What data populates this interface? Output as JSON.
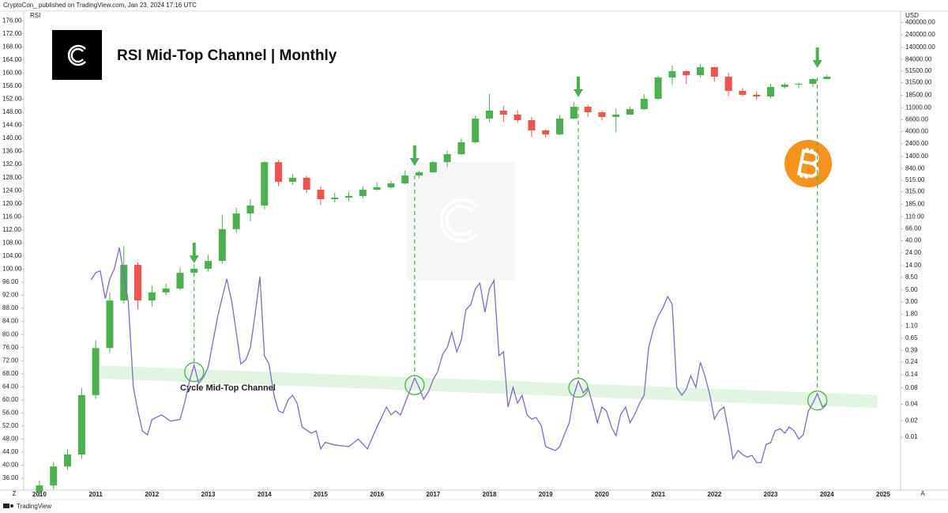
{
  "chart_data": {
    "type": "candlestick",
    "header": "CryptoCon_ published on TradingView.com, Jan 23, 2024 17:16 UTC",
    "title": "RSI Mid-Top Channel | Monthly",
    "annotation": "Cycle Mid-Top Channel",
    "y_label": "RSI",
    "y2_label": "USD",
    "footer": "TradingView",
    "left_button": "Z",
    "right_button": "A",
    "xlim": [
      2009.72,
      2025.31
    ],
    "xticks": [
      2010,
      2011,
      2012,
      2013,
      2014,
      2015,
      2016,
      2017,
      2018,
      2019,
      2020,
      2021,
      2022,
      2023,
      2024,
      2025
    ],
    "ylim": [
      32.4,
      178.7
    ],
    "yticks": [
      {
        "value": 36,
        "label": "36.00"
      },
      {
        "value": 40,
        "label": "40.00"
      },
      {
        "value": 44,
        "label": "44.00"
      },
      {
        "value": 48,
        "label": "48.00"
      },
      {
        "value": 52,
        "label": "52.00"
      },
      {
        "value": 56,
        "label": "56.00"
      },
      {
        "value": 60,
        "label": "60.00"
      },
      {
        "value": 64,
        "label": "64.00"
      },
      {
        "value": 68,
        "label": "68.00"
      },
      {
        "value": 72,
        "label": "72.00"
      },
      {
        "value": 76,
        "label": "76.00"
      },
      {
        "value": 80,
        "label": "80.00"
      },
      {
        "value": 84,
        "label": "84.00"
      },
      {
        "value": 88,
        "label": "88.00"
      },
      {
        "value": 92,
        "label": "92.00"
      },
      {
        "value": 96,
        "label": "96.00"
      },
      {
        "value": 100,
        "label": "100.00"
      },
      {
        "value": 104,
        "label": "104.00"
      },
      {
        "value": 108,
        "label": "108.00"
      },
      {
        "value": 112,
        "label": "112.00"
      },
      {
        "value": 116,
        "label": "116.00"
      },
      {
        "value": 120,
        "label": "120.00"
      },
      {
        "value": 124,
        "label": "124.00"
      },
      {
        "value": 128,
        "label": "128.00"
      },
      {
        "value": 132,
        "label": "132.00"
      },
      {
        "value": 136,
        "label": "136.00"
      },
      {
        "value": 140,
        "label": "140.00"
      },
      {
        "value": 144,
        "label": "144.00"
      },
      {
        "value": 148,
        "label": "148.00"
      },
      {
        "value": 152,
        "label": "152.00"
      },
      {
        "value": 156,
        "label": "156.00"
      },
      {
        "value": 160,
        "label": "160.00"
      },
      {
        "value": 164,
        "label": "164.00"
      },
      {
        "value": 168,
        "label": "168.00"
      },
      {
        "value": 172,
        "label": "172.00"
      },
      {
        "value": 176,
        "label": "176.00"
      }
    ],
    "y2_log": true,
    "y2lim": [
      0.00107,
      627000
    ],
    "y2ticks": [
      {
        "value": 400000,
        "label": "400000.00"
      },
      {
        "value": 240000,
        "label": "240000.00"
      },
      {
        "value": 140000,
        "label": "140000.00"
      },
      {
        "value": 84000,
        "label": "84000.00"
      },
      {
        "value": 51500,
        "label": "51500.00"
      },
      {
        "value": 31500,
        "label": "31500.00"
      },
      {
        "value": 18500,
        "label": "18500.00"
      },
      {
        "value": 11000,
        "label": "11000.00"
      },
      {
        "value": 6600,
        "label": "6600.00"
      },
      {
        "value": 4000,
        "label": "4000.00"
      },
      {
        "value": 2400,
        "label": "2400.00"
      },
      {
        "value": 1400,
        "label": "1400.00"
      },
      {
        "value": 840,
        "label": "840.00"
      },
      {
        "value": 515,
        "label": "515.00"
      },
      {
        "value": 315,
        "label": "315.00"
      },
      {
        "value": 185,
        "label": "185.00"
      },
      {
        "value": 110,
        "label": "110.00"
      },
      {
        "value": 66,
        "label": "66.00"
      },
      {
        "value": 40,
        "label": "40.00"
      },
      {
        "value": 24,
        "label": "24.00"
      },
      {
        "value": 14,
        "label": "14.00"
      },
      {
        "value": 8.5,
        "label": "8.50"
      },
      {
        "value": 5,
        "label": "5.00"
      },
      {
        "value": 3,
        "label": "3.00"
      },
      {
        "value": 1.8,
        "label": "1.80"
      },
      {
        "value": 1.1,
        "label": "1.10"
      },
      {
        "value": 0.65,
        "label": "0.65"
      },
      {
        "value": 0.39,
        "label": "0.39"
      },
      {
        "value": 0.24,
        "label": "0.24"
      },
      {
        "value": 0.14,
        "label": "0.14"
      },
      {
        "value": 0.08,
        "label": "0.08"
      },
      {
        "value": 0.04,
        "label": "0.04"
      },
      {
        "value": 0.02,
        "label": "0.02"
      },
      {
        "value": 0.01,
        "label": "0.01"
      }
    ],
    "series": [
      {
        "name": "RSI",
        "color": "#7e6bc4",
        "x": [
          2010.92,
          2011.0,
          2011.08,
          2011.17,
          2011.25,
          2011.33,
          2011.42,
          2011.58,
          2011.67,
          2011.75,
          2011.83,
          2011.92,
          2012.0,
          2012.17,
          2012.33,
          2012.5,
          2012.58,
          2012.67,
          2012.75,
          2012.83,
          2012.92,
          2013.0,
          2013.17,
          2013.33,
          2013.42,
          2013.58,
          2013.67,
          2013.75,
          2013.83,
          2013.92,
          2014.0,
          2014.08,
          2014.17,
          2014.25,
          2014.33,
          2014.42,
          2014.5,
          2014.58,
          2014.67,
          2014.83,
          2014.92,
          2015.0,
          2015.08,
          2015.25,
          2015.5,
          2015.67,
          2015.83,
          2016.0,
          2016.17,
          2016.25,
          2016.33,
          2016.42,
          2016.5,
          2016.58,
          2016.67,
          2016.75,
          2016.83,
          2016.92,
          2017.0,
          2017.08,
          2017.17,
          2017.25,
          2017.33,
          2017.42,
          2017.5,
          2017.58,
          2017.67,
          2017.75,
          2017.83,
          2017.92,
          2018.0,
          2018.08,
          2018.17,
          2018.25,
          2018.33,
          2018.42,
          2018.5,
          2018.58,
          2018.67,
          2018.75,
          2018.83,
          2018.92,
          2019.0,
          2019.17,
          2019.25,
          2019.33,
          2019.42,
          2019.5,
          2019.58,
          2019.67,
          2019.75,
          2019.83,
          2019.92,
          2020.0,
          2020.08,
          2020.17,
          2020.25,
          2020.33,
          2020.42,
          2020.5,
          2020.58,
          2020.67,
          2020.75,
          2020.83,
          2020.92,
          2021.0,
          2021.08,
          2021.17,
          2021.25,
          2021.33,
          2021.42,
          2021.5,
          2021.58,
          2021.67,
          2021.75,
          2021.83,
          2021.92,
          2022.0,
          2022.08,
          2022.17,
          2022.25,
          2022.33,
          2022.42,
          2022.5,
          2022.58,
          2022.67,
          2022.75,
          2022.83,
          2022.92,
          2023.0,
          2023.08,
          2023.17,
          2023.25,
          2023.33,
          2023.42,
          2023.5,
          2023.58,
          2023.67,
          2023.75,
          2023.83,
          2023.92,
          2024.0
        ],
        "values": [
          96.7,
          98.9,
          99.5,
          91,
          97,
          100,
          106.6,
          90,
          63.8,
          56.6,
          50.5,
          49.3,
          54,
          55.4,
          53.5,
          54,
          59,
          66,
          70.6,
          65,
          67,
          70,
          85.6,
          97,
          90,
          71,
          72.3,
          76,
          85.6,
          97.7,
          73.5,
          71,
          61.4,
          56.6,
          56,
          60,
          61.4,
          59,
          51.7,
          49.8,
          50.5,
          45,
          47,
          46.2,
          45.7,
          48,
          45,
          51.7,
          57.8,
          55.4,
          56.6,
          55.4,
          59,
          62.6,
          66.7,
          63.8,
          60.2,
          62.6,
          66.2,
          68.6,
          74,
          76,
          80.7,
          74.7,
          78.3,
          87.5,
          89.2,
          94,
          95.7,
          86.8,
          94,
          96.5,
          73.5,
          74.7,
          57.8,
          63.8,
          59,
          61.4,
          55.4,
          54.1,
          54.6,
          52.2,
          45.7,
          44.5,
          45.7,
          49.3,
          53,
          61.4,
          65.8,
          62.1,
          63.8,
          59,
          53,
          57.8,
          56.6,
          51.7,
          49,
          55.4,
          57.8,
          53,
          55.4,
          59,
          61.4,
          76,
          82,
          85.6,
          88,
          91.6,
          89.2,
          63.8,
          61.4,
          63.3,
          67.4,
          63.8,
          71.5,
          67.4,
          61.4,
          54.1,
          56.6,
          57.8,
          50.5,
          42,
          44.5,
          43.3,
          42.5,
          43,
          40.8,
          40.8,
          46.4,
          46.9,
          50.5,
          51.2,
          49.8,
          51.7,
          50.5,
          48,
          49.3,
          56.6,
          59,
          61.9,
          57.8,
          59
        ]
      }
    ],
    "candles": {
      "axis": "y2",
      "up_color": "#4caf50",
      "down_color": "#ef5350",
      "x": [
        2010.0,
        2010.25,
        2010.5,
        2010.75,
        2011.0,
        2011.25,
        2011.5,
        2011.75,
        2012.0,
        2012.25,
        2012.5,
        2012.75,
        2013.0,
        2013.25,
        2013.5,
        2013.75,
        2014.0,
        2014.25,
        2014.5,
        2014.75,
        2015.0,
        2015.25,
        2015.5,
        2015.75,
        2016.0,
        2016.25,
        2016.5,
        2016.75,
        2017.0,
        2017.25,
        2017.5,
        2017.75,
        2018.0,
        2018.25,
        2018.5,
        2018.75,
        2019.0,
        2019.25,
        2019.5,
        2019.75,
        2020.0,
        2020.25,
        2020.5,
        2020.75,
        2021.0,
        2021.25,
        2021.5,
        2021.75,
        2022.0,
        2022.25,
        2022.5,
        2022.75,
        2023.0,
        2023.25,
        2023.5,
        2023.75,
        2024.0
      ],
      "open": [
        0.001,
        0.0013,
        0.0029,
        0.0048,
        0.059,
        0.43,
        3.2,
        14.4,
        3.2,
        4.5,
        5.3,
        10.3,
        12.2,
        17,
        65,
        126,
        176,
        1100,
        480,
        570,
        344,
        230,
        246,
        263,
        344,
        380,
        449,
        627,
        716,
        1100,
        1540,
        2550,
        6930,
        9680,
        8190,
        6490,
        4200,
        3550,
        6930,
        11430,
        9050,
        7420,
        8190,
        10330,
        15950,
        39300,
        51300,
        43400,
        60700,
        40600,
        22300,
        18900,
        17600,
        26300,
        29100,
        30100,
        36700
      ],
      "high": [
        0.0016,
        0.0035,
        0.006,
        0.08,
        0.6,
        4.5,
        32,
        16,
        6,
        6.5,
        13,
        15,
        22,
        120,
        160,
        230,
        1150,
        1200,
        680,
        620,
        400,
        300,
        320,
        400,
        470,
        500,
        780,
        760,
        1150,
        1800,
        3000,
        7800,
        19500,
        11700,
        9900,
        7400,
        4400,
        8100,
        13800,
        12300,
        9600,
        10500,
        11400,
        19400,
        42000,
        64900,
        53000,
        69000,
        62000,
        48000,
        25000,
        22000,
        30000,
        31000,
        31800,
        38000,
        44000
      ],
      "low": [
        0.0008,
        0.0011,
        0.0025,
        0.004,
        0.05,
        0.35,
        2.8,
        2.2,
        2.5,
        4,
        5,
        9,
        11,
        15,
        55,
        90,
        150,
        400,
        420,
        300,
        180,
        200,
        210,
        240,
        330,
        360,
        430,
        560,
        700,
        900,
        1500,
        2400,
        6000,
        6000,
        5800,
        3200,
        3100,
        3400,
        6800,
        7400,
        6500,
        3900,
        8100,
        10000,
        15500,
        28800,
        30000,
        39500,
        33000,
        18000,
        17500,
        15500,
        16500,
        24800,
        25000,
        26500,
        38500
      ],
      "close": [
        0.0013,
        0.0029,
        0.0048,
        0.059,
        0.43,
        3.2,
        14.4,
        3.2,
        4.5,
        5.3,
        10.3,
        12.2,
        17,
        65,
        126,
        176,
        1100,
        480,
        570,
        344,
        230,
        246,
        263,
        344,
        380,
        449,
        627,
        716,
        1100,
        1540,
        2550,
        6930,
        9680,
        8190,
        6490,
        4200,
        3550,
        6930,
        11430,
        9050,
        7420,
        8190,
        10330,
        15950,
        39300,
        51300,
        43400,
        60700,
        40600,
        22300,
        18900,
        17600,
        26300,
        29100,
        30100,
        36700,
        40600
      ]
    },
    "channel": {
      "color": "#d8f0d8",
      "x": [
        2011.1,
        2024.9
      ],
      "upper": [
        70.5,
        61.5
      ],
      "lower": [
        66.5,
        57.5
      ]
    },
    "markers": {
      "color": "#4caf50",
      "x": [
        2012.75,
        2016.67,
        2019.58,
        2023.83
      ],
      "price": [
        10.3,
        627,
        11430,
        39300
      ],
      "rsi": [
        68.5,
        64.5,
        63.7,
        59.8
      ]
    }
  }
}
